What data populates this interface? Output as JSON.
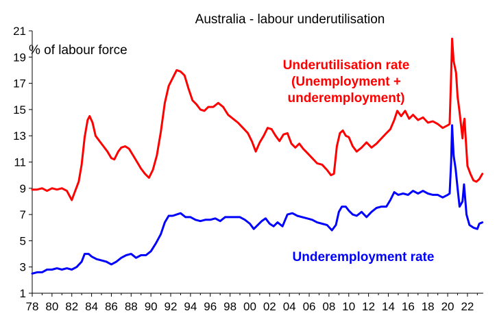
{
  "chart_data": {
    "type": "line",
    "title": "Australia - labour underutilisation",
    "ylabel": "% of labour force",
    "xlabel": "",
    "ylim": [
      1,
      21
    ],
    "xlim": [
      1978,
      2023.6
    ],
    "y_ticks": [
      "1",
      "3",
      "5",
      "7",
      "9",
      "11",
      "13",
      "15",
      "17",
      "19",
      "21"
    ],
    "x_ticks": [
      "78",
      "80",
      "82",
      "84",
      "86",
      "88",
      "90",
      "92",
      "94",
      "96",
      "98",
      "00",
      "02",
      "04",
      "06",
      "08",
      "10",
      "12",
      "14",
      "16",
      "18",
      "20",
      "22"
    ],
    "grid": false,
    "annotations": [
      {
        "lines": [
          "Underutilisation rate",
          "(Unemployment +",
          "underemployment)"
        ],
        "series": "underutilisation"
      },
      {
        "lines": [
          "Underemployment  rate"
        ],
        "series": "underemployment"
      }
    ],
    "series": [
      {
        "key": "underutilisation",
        "name": "Underutilisation rate (Unemployment + underemployment)",
        "color": "#ff0000",
        "points": [
          [
            1978.0,
            8.9
          ],
          [
            1978.5,
            8.9
          ],
          [
            1979.0,
            9.0
          ],
          [
            1979.5,
            8.8
          ],
          [
            1980.0,
            9.0
          ],
          [
            1980.5,
            8.9
          ],
          [
            1981.0,
            9.0
          ],
          [
            1981.5,
            8.8
          ],
          [
            1982.0,
            8.1
          ],
          [
            1982.3,
            8.7
          ],
          [
            1982.7,
            9.5
          ],
          [
            1983.0,
            10.8
          ],
          [
            1983.3,
            12.9
          ],
          [
            1983.6,
            14.2
          ],
          [
            1983.8,
            14.5
          ],
          [
            1984.1,
            14.0
          ],
          [
            1984.4,
            13.0
          ],
          [
            1984.8,
            12.6
          ],
          [
            1985.2,
            12.2
          ],
          [
            1985.6,
            11.8
          ],
          [
            1986.0,
            11.3
          ],
          [
            1986.3,
            11.2
          ],
          [
            1986.7,
            11.8
          ],
          [
            1987.0,
            12.1
          ],
          [
            1987.4,
            12.2
          ],
          [
            1987.8,
            12.0
          ],
          [
            1988.2,
            11.5
          ],
          [
            1988.6,
            11.0
          ],
          [
            1989.0,
            10.5
          ],
          [
            1989.4,
            10.1
          ],
          [
            1989.8,
            9.8
          ],
          [
            1990.2,
            10.4
          ],
          [
            1990.6,
            11.5
          ],
          [
            1991.0,
            13.3
          ],
          [
            1991.4,
            15.5
          ],
          [
            1991.8,
            16.8
          ],
          [
            1992.2,
            17.4
          ],
          [
            1992.6,
            18.0
          ],
          [
            1993.0,
            17.9
          ],
          [
            1993.4,
            17.6
          ],
          [
            1993.8,
            16.6
          ],
          [
            1994.2,
            15.7
          ],
          [
            1994.6,
            15.4
          ],
          [
            1995.0,
            15.0
          ],
          [
            1995.4,
            14.9
          ],
          [
            1995.8,
            15.2
          ],
          [
            1996.3,
            15.2
          ],
          [
            1996.8,
            15.5
          ],
          [
            1997.3,
            15.2
          ],
          [
            1997.8,
            14.6
          ],
          [
            1998.3,
            14.3
          ],
          [
            1998.8,
            14.0
          ],
          [
            1999.3,
            13.6
          ],
          [
            1999.8,
            13.2
          ],
          [
            2000.2,
            12.6
          ],
          [
            2000.6,
            11.8
          ],
          [
            2001.0,
            12.5
          ],
          [
            2001.4,
            13.0
          ],
          [
            2001.8,
            13.6
          ],
          [
            2002.2,
            13.5
          ],
          [
            2002.6,
            13.0
          ],
          [
            2003.0,
            12.6
          ],
          [
            2003.4,
            13.1
          ],
          [
            2003.8,
            13.2
          ],
          [
            2004.2,
            12.4
          ],
          [
            2004.6,
            12.1
          ],
          [
            2005.0,
            12.4
          ],
          [
            2005.4,
            12.0
          ],
          [
            2005.8,
            11.7
          ],
          [
            2006.3,
            11.3
          ],
          [
            2006.8,
            10.9
          ],
          [
            2007.3,
            10.8
          ],
          [
            2007.8,
            10.4
          ],
          [
            2008.2,
            10.0
          ],
          [
            2008.5,
            10.1
          ],
          [
            2008.8,
            12.2
          ],
          [
            2009.1,
            13.2
          ],
          [
            2009.4,
            13.4
          ],
          [
            2009.7,
            13.0
          ],
          [
            2010.0,
            12.9
          ],
          [
            2010.4,
            12.2
          ],
          [
            2010.8,
            11.8
          ],
          [
            2011.3,
            12.1
          ],
          [
            2011.8,
            12.5
          ],
          [
            2012.3,
            12.1
          ],
          [
            2012.8,
            12.4
          ],
          [
            2013.3,
            12.8
          ],
          [
            2013.8,
            13.2
          ],
          [
            2014.2,
            13.5
          ],
          [
            2014.6,
            14.2
          ],
          [
            2014.9,
            14.9
          ],
          [
            2015.3,
            14.5
          ],
          [
            2015.7,
            14.9
          ],
          [
            2016.1,
            14.3
          ],
          [
            2016.5,
            14.6
          ],
          [
            2017.0,
            14.2
          ],
          [
            2017.5,
            14.4
          ],
          [
            2018.0,
            14.0
          ],
          [
            2018.5,
            14.1
          ],
          [
            2019.0,
            13.9
          ],
          [
            2019.5,
            13.6
          ],
          [
            2020.0,
            13.8
          ],
          [
            2020.2,
            13.9
          ],
          [
            2020.35,
            17.6
          ],
          [
            2020.45,
            20.4
          ],
          [
            2020.6,
            18.7
          ],
          [
            2020.85,
            17.8
          ],
          [
            2021.0,
            16.0
          ],
          [
            2021.2,
            14.8
          ],
          [
            2021.5,
            12.8
          ],
          [
            2021.6,
            13.9
          ],
          [
            2021.7,
            14.3
          ],
          [
            2021.8,
            13.1
          ],
          [
            2022.0,
            10.7
          ],
          [
            2022.3,
            10.1
          ],
          [
            2022.6,
            9.6
          ],
          [
            2022.9,
            9.5
          ],
          [
            2023.2,
            9.7
          ],
          [
            2023.5,
            10.1
          ]
        ]
      },
      {
        "key": "underemployment",
        "name": "Underemployment rate",
        "color": "#0000ff",
        "points": [
          [
            1978.0,
            2.5
          ],
          [
            1978.5,
            2.6
          ],
          [
            1979.0,
            2.6
          ],
          [
            1979.5,
            2.8
          ],
          [
            1980.0,
            2.8
          ],
          [
            1980.5,
            2.9
          ],
          [
            1981.0,
            2.8
          ],
          [
            1981.5,
            2.9
          ],
          [
            1982.0,
            2.8
          ],
          [
            1982.5,
            3.0
          ],
          [
            1983.0,
            3.4
          ],
          [
            1983.3,
            4.0
          ],
          [
            1983.7,
            4.0
          ],
          [
            1984.0,
            3.8
          ],
          [
            1984.5,
            3.6
          ],
          [
            1985.0,
            3.5
          ],
          [
            1985.5,
            3.4
          ],
          [
            1986.0,
            3.2
          ],
          [
            1986.5,
            3.4
          ],
          [
            1987.0,
            3.7
          ],
          [
            1987.5,
            3.9
          ],
          [
            1988.0,
            4.0
          ],
          [
            1988.5,
            3.7
          ],
          [
            1989.0,
            3.9
          ],
          [
            1989.5,
            3.9
          ],
          [
            1990.0,
            4.2
          ],
          [
            1990.5,
            4.8
          ],
          [
            1991.0,
            5.5
          ],
          [
            1991.4,
            6.4
          ],
          [
            1991.8,
            6.9
          ],
          [
            1992.2,
            6.9
          ],
          [
            1992.6,
            7.0
          ],
          [
            1993.0,
            7.1
          ],
          [
            1993.5,
            6.8
          ],
          [
            1994.0,
            6.8
          ],
          [
            1994.5,
            6.6
          ],
          [
            1995.0,
            6.5
          ],
          [
            1995.5,
            6.6
          ],
          [
            1996.0,
            6.6
          ],
          [
            1996.5,
            6.7
          ],
          [
            1997.0,
            6.5
          ],
          [
            1997.5,
            6.8
          ],
          [
            1998.0,
            6.8
          ],
          [
            1998.5,
            6.8
          ],
          [
            1999.0,
            6.8
          ],
          [
            1999.5,
            6.6
          ],
          [
            2000.0,
            6.3
          ],
          [
            2000.4,
            5.9
          ],
          [
            2000.8,
            6.2
          ],
          [
            2001.2,
            6.5
          ],
          [
            2001.6,
            6.7
          ],
          [
            2002.0,
            6.3
          ],
          [
            2002.4,
            6.1
          ],
          [
            2002.8,
            6.4
          ],
          [
            2003.3,
            6.1
          ],
          [
            2003.8,
            7.0
          ],
          [
            2004.3,
            7.1
          ],
          [
            2004.8,
            6.9
          ],
          [
            2005.3,
            6.8
          ],
          [
            2005.8,
            6.7
          ],
          [
            2006.3,
            6.6
          ],
          [
            2006.8,
            6.4
          ],
          [
            2007.3,
            6.3
          ],
          [
            2007.8,
            6.2
          ],
          [
            2008.3,
            5.8
          ],
          [
            2008.7,
            6.2
          ],
          [
            2009.0,
            7.2
          ],
          [
            2009.3,
            7.6
          ],
          [
            2009.7,
            7.6
          ],
          [
            2010.0,
            7.3
          ],
          [
            2010.4,
            7.0
          ],
          [
            2010.8,
            6.9
          ],
          [
            2011.3,
            7.2
          ],
          [
            2011.8,
            6.8
          ],
          [
            2012.3,
            7.2
          ],
          [
            2012.8,
            7.5
          ],
          [
            2013.3,
            7.6
          ],
          [
            2013.8,
            7.6
          ],
          [
            2014.2,
            8.1
          ],
          [
            2014.6,
            8.7
          ],
          [
            2015.0,
            8.5
          ],
          [
            2015.5,
            8.6
          ],
          [
            2016.0,
            8.5
          ],
          [
            2016.5,
            8.8
          ],
          [
            2017.0,
            8.6
          ],
          [
            2017.5,
            8.8
          ],
          [
            2018.0,
            8.6
          ],
          [
            2018.5,
            8.5
          ],
          [
            2019.0,
            8.5
          ],
          [
            2019.5,
            8.3
          ],
          [
            2020.0,
            8.5
          ],
          [
            2020.2,
            8.6
          ],
          [
            2020.35,
            11.0
          ],
          [
            2020.45,
            13.8
          ],
          [
            2020.6,
            11.5
          ],
          [
            2020.8,
            10.5
          ],
          [
            2021.0,
            9.0
          ],
          [
            2021.2,
            7.6
          ],
          [
            2021.5,
            8.0
          ],
          [
            2021.65,
            9.3
          ],
          [
            2021.75,
            8.4
          ],
          [
            2021.9,
            7.0
          ],
          [
            2022.2,
            6.2
          ],
          [
            2022.6,
            6.0
          ],
          [
            2023.0,
            5.9
          ],
          [
            2023.2,
            6.3
          ],
          [
            2023.5,
            6.4
          ]
        ]
      }
    ]
  }
}
